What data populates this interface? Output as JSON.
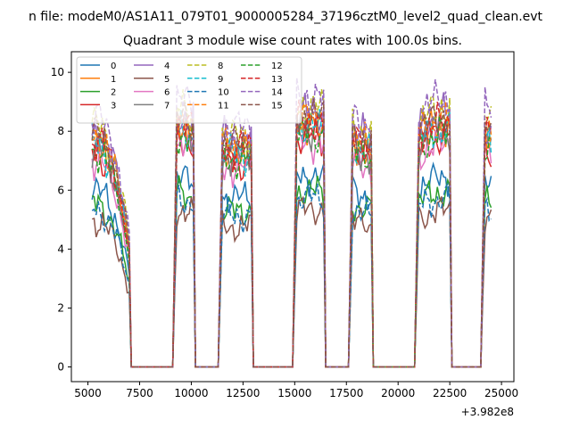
{
  "suptitle": "n file: modeM0/AS1A11_079T01_9000005284_37196cztM0_level2_quad_clean.evt",
  "chart_data": {
    "type": "line",
    "title": "Quadrant 3 module wise count rates with 100.0s bins.",
    "xlabel": "",
    "ylabel": "",
    "x_offset_label": "+3.982e8",
    "xlim": [
      4200,
      25600
    ],
    "ylim": [
      -0.5,
      10.7
    ],
    "xticks": [
      5000,
      7500,
      10000,
      12500,
      15000,
      17500,
      20000,
      22500,
      25000
    ],
    "xtick_labels": [
      "5000",
      "7500",
      "10000",
      "12500",
      "15000",
      "17500",
      "20000",
      "22500",
      "25000"
    ],
    "yticks": [
      0,
      2,
      4,
      6,
      8,
      10
    ],
    "ytick_labels": [
      "0",
      "2",
      "4",
      "6",
      "8",
      "10"
    ],
    "grid": false,
    "legend_position": "top-left",
    "legend_columns": 4,
    "active_intervals": [
      [
        5200,
        7000
      ],
      [
        9200,
        10100
      ],
      [
        11400,
        12900
      ],
      [
        15000,
        16400
      ],
      [
        17700,
        18700
      ],
      [
        20900,
        22500
      ],
      [
        24100,
        24500
      ]
    ],
    "series": [
      {
        "name": "0",
        "level": 6.3,
        "color": "#1f77b4",
        "dash": "solid"
      },
      {
        "name": "1",
        "level": 8.0,
        "color": "#ff7f0e",
        "dash": "solid"
      },
      {
        "name": "2",
        "level": 5.8,
        "color": "#2ca02c",
        "dash": "solid"
      },
      {
        "name": "3",
        "level": 7.6,
        "color": "#d62728",
        "dash": "solid"
      },
      {
        "name": "4",
        "level": 8.4,
        "color": "#9467bd",
        "dash": "solid"
      },
      {
        "name": "5",
        "level": 5.2,
        "color": "#8c564b",
        "dash": "solid"
      },
      {
        "name": "6",
        "level": 7.4,
        "color": "#e377c2",
        "dash": "solid"
      },
      {
        "name": "7",
        "level": 7.8,
        "color": "#7f7f7f",
        "dash": "solid"
      },
      {
        "name": "8",
        "level": 8.6,
        "color": "#bcbd22",
        "dash": "dashed"
      },
      {
        "name": "9",
        "level": 7.9,
        "color": "#17becf",
        "dash": "dashed"
      },
      {
        "name": "10",
        "level": 5.6,
        "color": "#1f77b4",
        "dash": "dashed"
      },
      {
        "name": "11",
        "level": 8.2,
        "color": "#ff7f0e",
        "dash": "dashed"
      },
      {
        "name": "12",
        "level": 7.7,
        "color": "#2ca02c",
        "dash": "dashed"
      },
      {
        "name": "13",
        "level": 8.1,
        "color": "#d62728",
        "dash": "dashed"
      },
      {
        "name": "14",
        "level": 8.9,
        "color": "#9467bd",
        "dash": "dashed"
      },
      {
        "name": "15",
        "level": 8.3,
        "color": "#8c564b",
        "dash": "dashed"
      }
    ]
  }
}
